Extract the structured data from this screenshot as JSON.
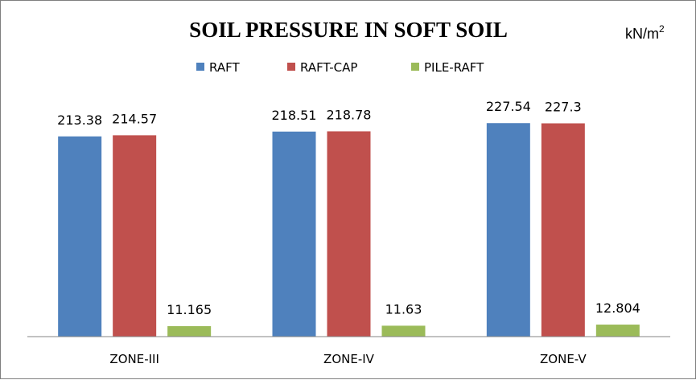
{
  "chart_data": {
    "type": "bar",
    "title": "SOIL PRESSURE IN SOFT SOIL",
    "unit": "kN/m",
    "unit_superscript": "2",
    "categories": [
      "ZONE-III",
      "ZONE-IV",
      "ZONE-V"
    ],
    "series": [
      {
        "name": "RAFT",
        "color": "#4f81bd",
        "values": [
          213.38,
          218.51,
          227.54
        ],
        "labels": [
          "213.38",
          "218.51",
          "227.54"
        ]
      },
      {
        "name": "RAFT-CAP",
        "color": "#c0504d",
        "values": [
          214.57,
          218.78,
          227.3
        ],
        "labels": [
          "214.57",
          "218.78",
          "227.3"
        ]
      },
      {
        "name": "PILE-RAFT",
        "color": "#9bbb59",
        "values": [
          11.165,
          11.63,
          12.804
        ],
        "labels": [
          "11.165",
          "11.63",
          "12.804"
        ]
      }
    ],
    "ylim": [
      0,
      250
    ],
    "grid": false,
    "legend_position": "top-center",
    "xlabel": "",
    "ylabel": ""
  }
}
